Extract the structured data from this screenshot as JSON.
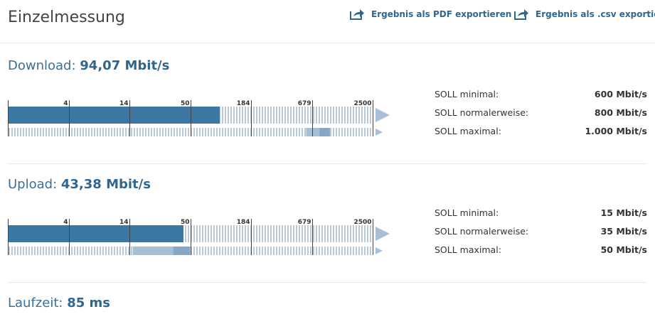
{
  "header": {
    "title": "Einzelmessung",
    "export_pdf": "Ergebnis als PDF exportieren",
    "export_csv": "Ergebnis als .csv exportieren"
  },
  "measurements": [
    {
      "label": "Download:",
      "value": 94.07,
      "value_label": "94,07 Mbit/s",
      "scale_ticks": [
        4,
        14,
        50,
        184,
        679,
        2500
      ],
      "targets": [
        {
          "label": "SOLL minimal:",
          "value": 600,
          "value_label": "600 Mbit/s"
        },
        {
          "label": "SOLL normalerweise:",
          "value": 800,
          "value_label": "800 Mbit/s"
        },
        {
          "label": "SOLL maximal:",
          "value": 1000,
          "value_label": "1.000 Mbit/s"
        }
      ]
    },
    {
      "label": "Upload:",
      "value": 43.38,
      "value_label": "43,38 Mbit/s",
      "scale_ticks": [
        4,
        14,
        50,
        184,
        679,
        2500
      ],
      "targets": [
        {
          "label": "SOLL minimal:",
          "value": 15,
          "value_label": "15 Mbit/s"
        },
        {
          "label": "SOLL normalerweise:",
          "value": 35,
          "value_label": "35 Mbit/s"
        },
        {
          "label": "SOLL maximal:",
          "value": 50,
          "value_label": "50 Mbit/s"
        }
      ]
    }
  ],
  "latency": {
    "label": "Laufzeit:",
    "value_label": "85 ms"
  }
}
